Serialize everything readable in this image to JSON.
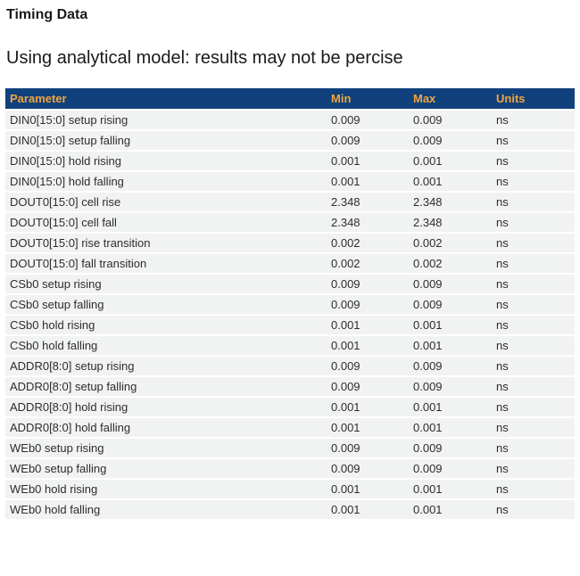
{
  "page": {
    "title": "Timing Data",
    "subtitle": "Using analytical model: results may not be percise"
  },
  "colors": {
    "header_bg": "#10417C",
    "header_text": "#F0A43F",
    "row_bg": "#F1F2F2",
    "row_text": "#2D2D2D",
    "title_text": "#1A1A1A"
  },
  "table": {
    "columns": [
      "Parameter",
      "Min",
      "Max",
      "Units"
    ],
    "rows": [
      {
        "parameter": "DIN0[15:0] setup rising",
        "min": "0.009",
        "max": "0.009",
        "units": "ns"
      },
      {
        "parameter": "DIN0[15:0] setup falling",
        "min": "0.009",
        "max": "0.009",
        "units": "ns"
      },
      {
        "parameter": "DIN0[15:0] hold rising",
        "min": "0.001",
        "max": "0.001",
        "units": "ns"
      },
      {
        "parameter": "DIN0[15:0] hold falling",
        "min": "0.001",
        "max": "0.001",
        "units": "ns"
      },
      {
        "parameter": "DOUT0[15:0] cell rise",
        "min": "2.348",
        "max": "2.348",
        "units": "ns"
      },
      {
        "parameter": "DOUT0[15:0] cell fall",
        "min": "2.348",
        "max": "2.348",
        "units": "ns"
      },
      {
        "parameter": "DOUT0[15:0] rise transition",
        "min": "0.002",
        "max": "0.002",
        "units": "ns"
      },
      {
        "parameter": "DOUT0[15:0] fall transition",
        "min": "0.002",
        "max": "0.002",
        "units": "ns"
      },
      {
        "parameter": "CSb0 setup rising",
        "min": "0.009",
        "max": "0.009",
        "units": "ns"
      },
      {
        "parameter": "CSb0 setup falling",
        "min": "0.009",
        "max": "0.009",
        "units": "ns"
      },
      {
        "parameter": "CSb0 hold rising",
        "min": "0.001",
        "max": "0.001",
        "units": "ns"
      },
      {
        "parameter": "CSb0 hold falling",
        "min": "0.001",
        "max": "0.001",
        "units": "ns"
      },
      {
        "parameter": "ADDR0[8:0] setup rising",
        "min": "0.009",
        "max": "0.009",
        "units": "ns"
      },
      {
        "parameter": "ADDR0[8:0] setup falling",
        "min": "0.009",
        "max": "0.009",
        "units": "ns"
      },
      {
        "parameter": "ADDR0[8:0] hold rising",
        "min": "0.001",
        "max": "0.001",
        "units": "ns"
      },
      {
        "parameter": "ADDR0[8:0] hold falling",
        "min": "0.001",
        "max": "0.001",
        "units": "ns"
      },
      {
        "parameter": "WEb0 setup rising",
        "min": "0.009",
        "max": "0.009",
        "units": "ns"
      },
      {
        "parameter": "WEb0 setup falling",
        "min": "0.009",
        "max": "0.009",
        "units": "ns"
      },
      {
        "parameter": "WEb0 hold rising",
        "min": "0.001",
        "max": "0.001",
        "units": "ns"
      },
      {
        "parameter": "WEb0 hold falling",
        "min": "0.001",
        "max": "0.001",
        "units": "ns"
      }
    ]
  }
}
